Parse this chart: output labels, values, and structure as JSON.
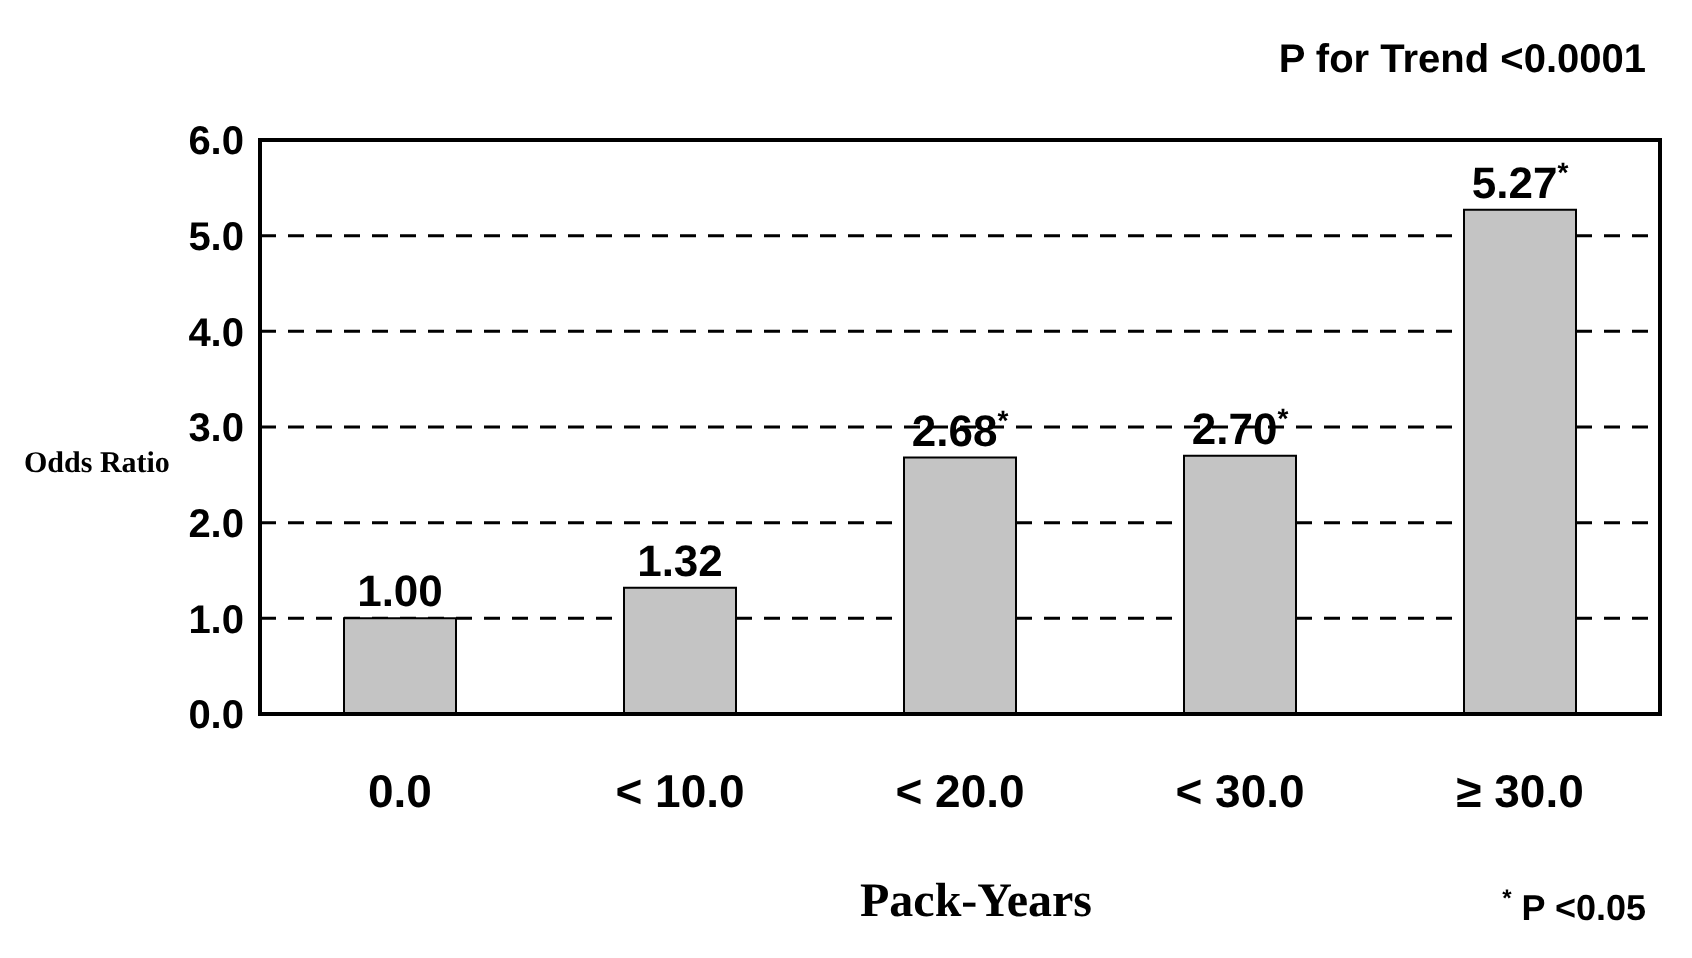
{
  "chart_data": {
    "type": "bar",
    "xlabel": "Pack-Years",
    "ylabel": "Odds Ratio",
    "categories": [
      "0.0",
      "< 10.0",
      "< 20.0",
      "< 30.0",
      "≥ 30.0"
    ],
    "values": [
      1.0,
      1.32,
      2.68,
      2.7,
      5.27
    ],
    "value_labels": [
      "1.00",
      "1.32",
      "2.68$^{*}$",
      "2.70$^{*}$",
      "5.27$^{*}$"
    ],
    "color": "#c4c4c4",
    "ylim": [
      0,
      6
    ],
    "yticks": [
      {
        "value": 0,
        "label": "0.0"
      },
      {
        "value": 1,
        "label": "1.0"
      },
      {
        "value": 2,
        "label": "2.0"
      },
      {
        "value": 3,
        "label": "3.0"
      },
      {
        "value": 4,
        "label": "4.0"
      },
      {
        "value": 5,
        "label": "5.0"
      },
      {
        "value": 6,
        "label": "6.0"
      }
    ],
    "grid": "y",
    "line_style": "dashed",
    "annotations": [
      "P for Trend <0.0001",
      "$^{*}$ P <0.05"
    ]
  }
}
